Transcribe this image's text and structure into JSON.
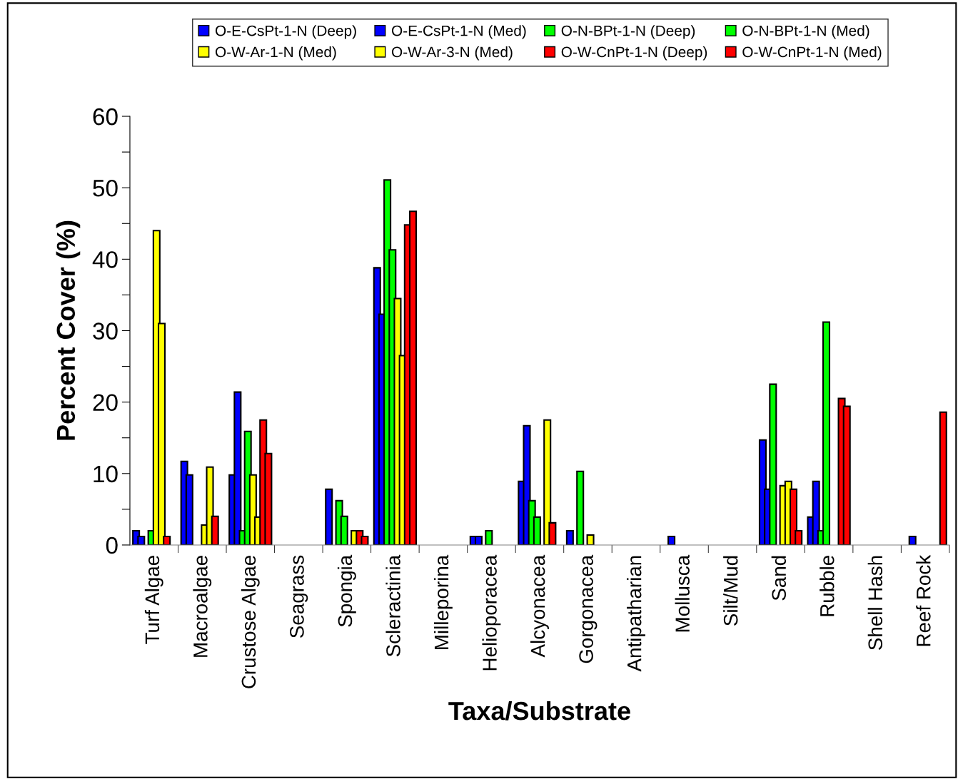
{
  "chart_data": {
    "type": "bar",
    "xlabel": "Taxa/Substrate",
    "ylabel": "Percent Cover (%)",
    "categories": [
      "Turf Algae",
      "Macroalgae",
      "Crustose Algae",
      "Seagrass",
      "Spongia",
      "Scleractinia",
      "Milleporina",
      "Helioporacea",
      "Alcyonacea",
      "Gorgonacea",
      "Antipatharian",
      "Mollusca",
      "Silt/Mud",
      "Sand",
      "Rubble",
      "Shell Hash",
      "Reef Rock"
    ],
    "series": [
      {
        "name": "O-E-CsPt-1-N (Deep)",
        "color": "#0000ff",
        "values": [
          2,
          11.7,
          9.8,
          null,
          7.8,
          38.8,
          null,
          1.2,
          8.9,
          2,
          null,
          null,
          null,
          14.7,
          3.9,
          null,
          null
        ]
      },
      {
        "name": "O-E-CsPt-1-N (Med)",
        "color": "#0000ff",
        "values": [
          1.2,
          9.8,
          21.4,
          null,
          null,
          32.3,
          null,
          1.2,
          16.7,
          null,
          null,
          1.2,
          null,
          7.8,
          8.9,
          null,
          1.2
        ]
      },
      {
        "name": "O-N-BPt-1-N (Deep)",
        "color": "#00ff00",
        "values": [
          null,
          null,
          2,
          null,
          6.2,
          51.1,
          null,
          null,
          6.2,
          10.3,
          null,
          null,
          null,
          22.5,
          2,
          null,
          null
        ]
      },
      {
        "name": "O-N-BPt-1-N (Med)",
        "color": "#00ff00",
        "values": [
          2,
          null,
          15.9,
          null,
          4,
          41.3,
          null,
          2,
          3.9,
          null,
          null,
          null,
          null,
          null,
          31.2,
          null,
          null
        ]
      },
      {
        "name": "O-W-Ar-1-N (Med)",
        "color": "#ffff00",
        "values": [
          44,
          2.8,
          9.8,
          null,
          null,
          34.5,
          null,
          null,
          null,
          1.4,
          null,
          null,
          null,
          8.3,
          null,
          null,
          null
        ]
      },
      {
        "name": "O-W-Ar-3-N (Med)",
        "color": "#ffff00",
        "values": [
          31,
          10.9,
          3.9,
          null,
          2,
          26.5,
          null,
          null,
          17.5,
          null,
          null,
          null,
          null,
          8.9,
          null,
          null,
          null
        ]
      },
      {
        "name": "O-W-CnPt-1-N (Deep)",
        "color": "#ff0000",
        "values": [
          1.2,
          4,
          17.5,
          null,
          2,
          44.8,
          null,
          null,
          3.1,
          null,
          null,
          null,
          null,
          7.8,
          20.5,
          null,
          null
        ]
      },
      {
        "name": "O-W-CnPt-1-N (Med)",
        "color": "#ff0000",
        "values": [
          null,
          null,
          12.8,
          null,
          1.2,
          46.7,
          null,
          null,
          null,
          null,
          null,
          null,
          null,
          2,
          19.4,
          null,
          18.6
        ]
      }
    ],
    "ylim": [
      0,
      60
    ],
    "yticks": [
      0,
      {
        "value": 5,
        "label": null
      },
      10,
      {
        "value": 15,
        "label": null
      },
      20,
      {
        "value": 25,
        "label": null
      },
      30,
      {
        "value": 35,
        "label": null
      },
      40,
      {
        "value": 45,
        "label": null
      },
      50,
      {
        "value": 55,
        "label": null
      },
      60
    ],
    "grid": false,
    "legend": "top"
  }
}
